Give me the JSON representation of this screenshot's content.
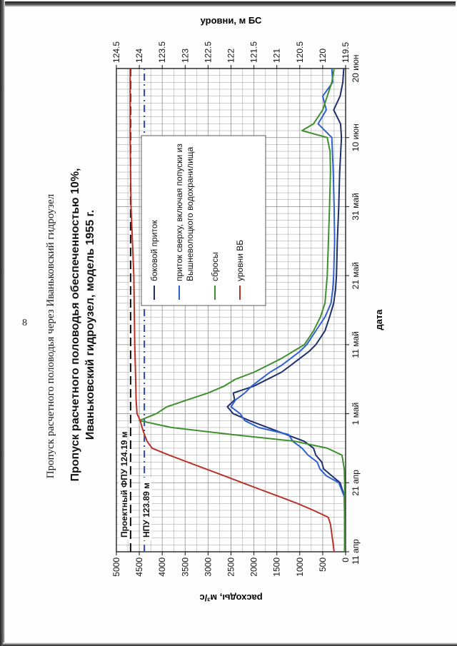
{
  "document": {
    "page_number": "8",
    "caption": "Пропуск расчетного половодья через Иваньковский гидроузел"
  },
  "chart_data": {
    "type": "line",
    "title": "Пропуск расчетного половодья обеспеченностью 10%,\nИваньковский гидроузел, модель 1955 г.",
    "xlabel": "дата",
    "ylabel": "расходы, м³/с",
    "y2label": "уровни, м БС",
    "ylim": [
      0,
      5000
    ],
    "y2lim": [
      119.5,
      124.5
    ],
    "yticks": [
      "0",
      "500",
      "1000",
      "1500",
      "2000",
      "2500",
      "3000",
      "3500",
      "4000",
      "4500",
      "5000"
    ],
    "y2ticks": [
      "119.5",
      "120",
      "120.5",
      "121",
      "121.5",
      "122",
      "122.5",
      "123",
      "123.5",
      "124",
      "124.5"
    ],
    "x_range_days": [
      0,
      70
    ],
    "x_tick_labels": [
      "11 апр",
      "21 апр",
      "1 май",
      "11 май",
      "21 май",
      "31 май",
      "10 июн",
      "20 июн"
    ],
    "grid": true,
    "legend_position": "top-right",
    "reference_lines": [
      {
        "label": "Проектный ФПУ 124.19 м",
        "level": 124.19,
        "style": "dashed",
        "color": "#111111"
      },
      {
        "label": "НПУ 123.89 м",
        "level": 123.89,
        "style": "dashdot",
        "color": "#2847a8"
      }
    ],
    "series": [
      {
        "name": "боковой приток",
        "axis": "left",
        "color": "#1f2f6e",
        "x": [
          0,
          4,
          8,
          10,
          11,
          12,
          13,
          14,
          15,
          16,
          17,
          18,
          19,
          20,
          21,
          22,
          23,
          24,
          25,
          26,
          27,
          28,
          29,
          30,
          32,
          34,
          36,
          38,
          40,
          45,
          50,
          55,
          60,
          62,
          64,
          66,
          68,
          70
        ],
        "y": [
          20,
          20,
          25,
          120,
          300,
          480,
          520,
          650,
          700,
          900,
          1300,
          1700,
          2100,
          2450,
          2580,
          2420,
          2450,
          2000,
          1700,
          1400,
          1200,
          1000,
          800,
          650,
          450,
          350,
          260,
          220,
          200,
          180,
          150,
          130,
          90,
          110,
          260,
          120,
          60,
          40
        ]
      },
      {
        "name": "приток сверху, включая попуски из Вышневолоцкого водохранилища",
        "axis": "left",
        "color": "#2f5fd0",
        "x": [
          0,
          4,
          8,
          10,
          11,
          12,
          13,
          14,
          15,
          16,
          17,
          18,
          19,
          20,
          21,
          22,
          23,
          24,
          25,
          26,
          27,
          28,
          29,
          30,
          32,
          34,
          36,
          38,
          40,
          45,
          50,
          55,
          60,
          62,
          64,
          66,
          68,
          70
        ],
        "y": [
          20,
          20,
          30,
          150,
          420,
          560,
          620,
          820,
          950,
          1150,
          1250,
          1900,
          2200,
          2300,
          2500,
          2400,
          2200,
          2050,
          1850,
          1650,
          1400,
          1200,
          1000,
          850,
          650,
          450,
          320,
          280,
          260,
          240,
          250,
          270,
          300,
          600,
          420,
          500,
          280,
          300
        ]
      },
      {
        "name": "сбросы",
        "axis": "left",
        "color": "#3f8f2f",
        "x": [
          0,
          4,
          8,
          10,
          12,
          14,
          15,
          16,
          17,
          18,
          19,
          20,
          21,
          22,
          23,
          24,
          25,
          26,
          27,
          28,
          29,
          30,
          32,
          34,
          36,
          40,
          44,
          50,
          55,
          58,
          60,
          61,
          62,
          64,
          66,
          68,
          70
        ],
        "y": [
          20,
          20,
          20,
          20,
          30,
          80,
          400,
          1100,
          2500,
          3800,
          4500,
          4130,
          3900,
          3450,
          3000,
          2650,
          2400,
          2000,
          1700,
          1400,
          1150,
          900,
          700,
          550,
          450,
          400,
          380,
          350,
          330,
          340,
          400,
          950,
          700,
          500,
          400,
          300,
          250
        ]
      },
      {
        "name": "уровни ВБ",
        "axis": "right",
        "color": "#b83228",
        "x": [
          0,
          1,
          2,
          3,
          4,
          5,
          6,
          7,
          8,
          9,
          10,
          11,
          12,
          13,
          14,
          15,
          16,
          17,
          18,
          19,
          20,
          22,
          25,
          30,
          40,
          50,
          60,
          70
        ],
        "y": [
          119.75,
          119.77,
          119.79,
          119.81,
          119.83,
          119.88,
          120.2,
          120.55,
          120.95,
          121.35,
          121.75,
          122.15,
          122.55,
          122.95,
          123.35,
          123.72,
          123.83,
          123.89,
          123.94,
          123.98,
          124.05,
          124.07,
          124.08,
          124.1,
          124.12,
          124.18,
          124.2,
          124.2
        ]
      }
    ]
  }
}
